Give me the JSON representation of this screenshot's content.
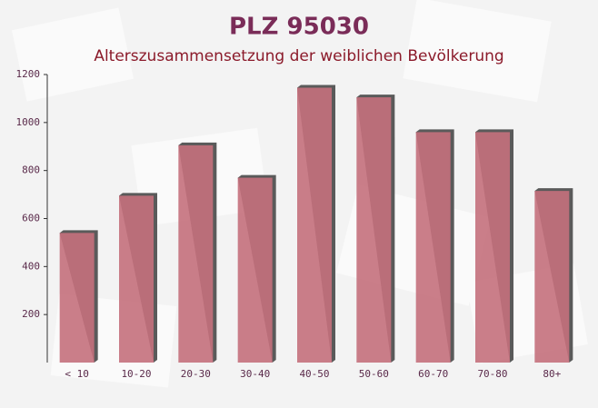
{
  "chart_data": {
    "type": "bar",
    "title": "PLZ 95030",
    "subtitle": "Alterszusammensetzung der weiblichen Bevölkerung",
    "categories": [
      "< 10",
      "10-20",
      "20-30",
      "30-40",
      "40-50",
      "50-60",
      "60-70",
      "70-80",
      "80+"
    ],
    "values": [
      540,
      695,
      905,
      770,
      1145,
      1105,
      960,
      960,
      715
    ],
    "color": "#c4707c",
    "ylim": [
      0,
      1200
    ],
    "yticks": [
      200,
      400,
      600,
      800,
      1000,
      1200
    ]
  }
}
